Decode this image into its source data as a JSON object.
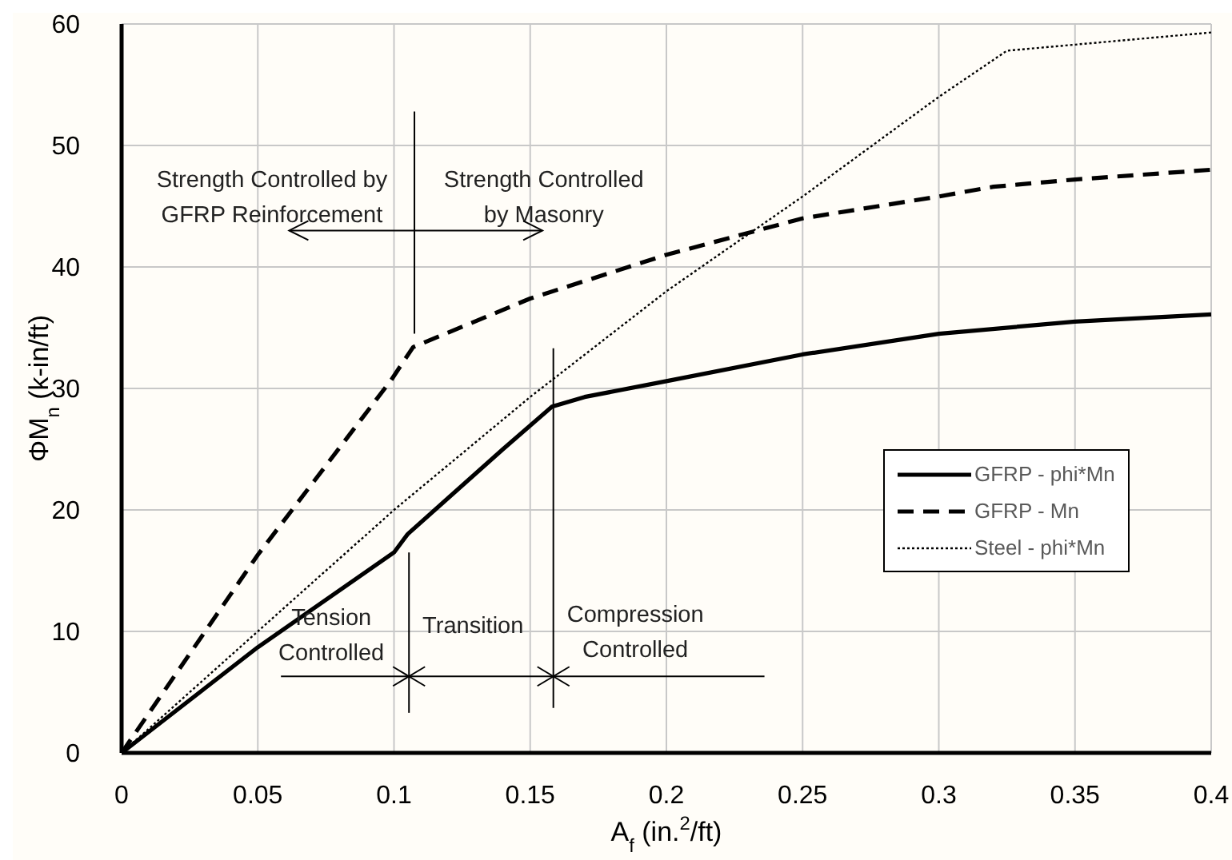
{
  "chart_data": {
    "type": "line",
    "xlabel": "A$_{f}$ (in.$^{2}$/ft)",
    "ylabel": "ΦM$_{n}$ (k-in/ft)",
    "xlim": [
      0,
      0.4
    ],
    "xticks": [
      0,
      0.05,
      0.1,
      0.15,
      0.2,
      0.25,
      0.3,
      0.35,
      0.4
    ],
    "ylim": [
      0,
      60
    ],
    "yticks": [
      0,
      10,
      20,
      30,
      40,
      50,
      60
    ],
    "grid": true,
    "legend": "right",
    "marker": "none",
    "annotations": [
      "Strength Controlled by\nGFRP Reinforcement",
      "Strength Controlled\nby Masonry",
      "Tension\nControlled",
      "Transition",
      "Compression\nControlled"
    ],
    "series": [
      {
        "name": "GFRP - phi*Mn",
        "color": "#000000",
        "line_style": "solid",
        "x": [
          0,
          0.05,
          0.1,
          0.105,
          0.12,
          0.14,
          0.158,
          0.17,
          0.2,
          0.25,
          0.3,
          0.35,
          0.4
        ],
        "values": [
          0,
          8.7,
          16.5,
          18,
          21,
          25,
          28.5,
          29.3,
          30.6,
          32.8,
          34.5,
          35.5,
          36.1
        ]
      },
      {
        "name": "GFRP - Mn",
        "color": "#000000",
        "line_style": "dashed",
        "x": [
          0,
          0.05,
          0.099,
          0.107,
          0.15,
          0.2,
          0.25,
          0.3,
          0.32,
          0.35,
          0.4
        ],
        "values": [
          0,
          16.3,
          30.7,
          33.4,
          37.4,
          41,
          44,
          45.8,
          46.6,
          47.2,
          48
        ]
      },
      {
        "name": "Steel - phi*Mn",
        "color": "#000000",
        "line_style": "dotted",
        "x": [
          0,
          0.05,
          0.1,
          0.15,
          0.2,
          0.25,
          0.3,
          0.325,
          0.35,
          0.4
        ],
        "values": [
          0,
          10,
          20,
          29.3,
          38,
          45.8,
          54,
          57.8,
          58.3,
          59.3
        ]
      }
    ]
  }
}
